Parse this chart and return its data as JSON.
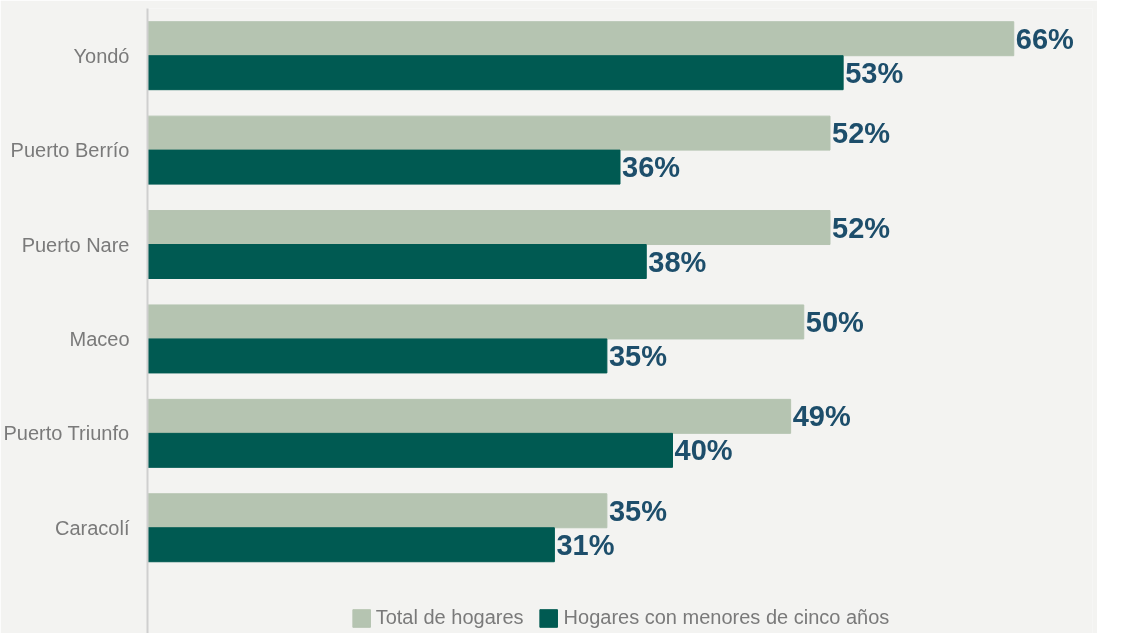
{
  "chart_data": {
    "type": "bar",
    "orientation": "horizontal",
    "categories": [
      "Yondó",
      "Puerto Berrío",
      "Puerto Nare",
      "Maceo",
      "Puerto Triunfo",
      "Caracolí"
    ],
    "series": [
      {
        "name": "Total de hogares",
        "color": "#b5c4b1",
        "values": [
          66,
          52,
          52,
          50,
          49,
          35
        ],
        "value_labels": [
          "66%",
          "52%",
          "52%",
          "50%",
          "49%",
          "35%"
        ]
      },
      {
        "name": "Hogares con menores de cinco años",
        "color": "#005a52",
        "values": [
          53,
          36,
          38,
          35,
          40,
          31
        ],
        "value_labels": [
          "53%",
          "36%",
          "38%",
          "35%",
          "40%",
          "31%"
        ]
      }
    ],
    "xlim": [
      0,
      72
    ],
    "tick_labels": "y",
    "grid": false,
    "legend": "bottom"
  }
}
